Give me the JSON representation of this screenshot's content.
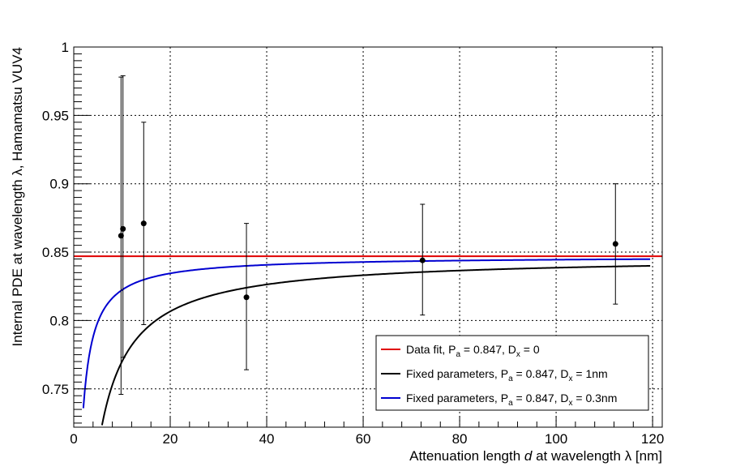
{
  "chart_data": {
    "type": "scatter",
    "title": "",
    "xlabel": {
      "prefix": "Attenuation length ",
      "italic": "d",
      "suffix": " at wavelength λ [nm]"
    },
    "ylabel": "Internal PDE at wavelength λ, Hamamatsu VUV4",
    "xlim": [
      0,
      122
    ],
    "ylim": [
      0.722,
      1.0
    ],
    "x_ticks": [
      "0",
      "20",
      "40",
      "60",
      "80",
      "100",
      "120"
    ],
    "y_ticks": [
      "0.75",
      "0.8",
      "0.85",
      "0.9",
      "0.95",
      "1"
    ],
    "grid": true,
    "legend_position": "bottom-right",
    "data_points": [
      {
        "x": 9.8,
        "y": 0.862,
        "err_low": 0.116,
        "err_high": 0.116
      },
      {
        "x": 10.2,
        "y": 0.867,
        "err_low": 0.094,
        "err_high": 0.112
      },
      {
        "x": 14.5,
        "y": 0.871,
        "err_low": 0.074,
        "err_high": 0.074
      },
      {
        "x": 35.8,
        "y": 0.817,
        "err_low": 0.053,
        "err_high": 0.054
      },
      {
        "x": 72.3,
        "y": 0.844,
        "err_low": 0.04,
        "err_high": 0.041
      },
      {
        "x": 112.3,
        "y": 0.856,
        "err_low": 0.044,
        "err_high": 0.044
      }
    ],
    "series": [
      {
        "name": "Data fit, P_a = 0.847, D_x = 0",
        "color": "#e00000",
        "Pa": 0.847,
        "Dx": 0,
        "x_range": [
          0,
          122
        ]
      },
      {
        "name": "Fixed parameters, P_a = 0.847, D_x = 1nm",
        "color": "#000000",
        "Pa": 0.847,
        "Dx": 1.0,
        "x_range": [
          0.5,
          119.5
        ]
      },
      {
        "name": "Fixed parameters, P_a = 0.847, D_x = 0.3nm",
        "color": "#0000d0",
        "Pa": 0.847,
        "Dx": 0.3,
        "x_range": [
          0.5,
          119.5
        ]
      }
    ],
    "legend": [
      {
        "pre": "Data fit, P",
        "sub1": "a",
        "mid": " = 0.847, D",
        "sub2": "x",
        "post": " = 0",
        "color": "#e00000"
      },
      {
        "pre": "Fixed parameters, P",
        "sub1": "a",
        "mid": " = 0.847, D",
        "sub2": "x",
        "post": " = 1nm",
        "color": "#000000"
      },
      {
        "pre": "Fixed parameters, P",
        "sub1": "a",
        "mid": " = 0.847, D",
        "sub2": "x",
        "post": " = 0.3nm",
        "color": "#0000d0"
      }
    ]
  }
}
